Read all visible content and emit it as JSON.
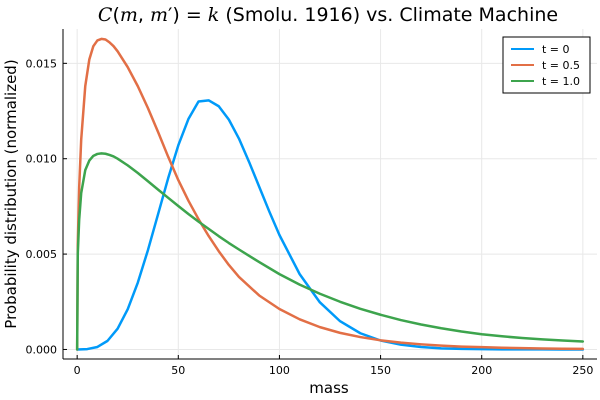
{
  "chart_data": {
    "type": "line",
    "title": {
      "formula_func": "C",
      "formula_args_a": "(",
      "formula_m1": "m",
      "formula_comma": ", ",
      "formula_m2": "m",
      "formula_prime": "′",
      "formula_close": ")",
      "formula_eq": " = ",
      "formula_k": "k",
      "rest": " (Smolu. 1916) vs. Climate Machine"
    },
    "xlabel": "mass",
    "ylabel": "Probability distribution (normalized)",
    "xlim": [
      -7,
      257
    ],
    "ylim": [
      -0.0005,
      0.0168
    ],
    "x_ticks": [
      {
        "value": 0,
        "label": "0"
      },
      {
        "value": 50,
        "label": "50"
      },
      {
        "value": 100,
        "label": "100"
      },
      {
        "value": 150,
        "label": "150"
      },
      {
        "value": 200,
        "label": "200"
      },
      {
        "value": 250,
        "label": "250"
      }
    ],
    "y_ticks": [
      {
        "value": 0.0,
        "label": "0.000"
      },
      {
        "value": 0.005,
        "label": "0.005"
      },
      {
        "value": 0.01,
        "label": "0.010"
      },
      {
        "value": 0.015,
        "label": "0.015"
      }
    ],
    "grid": true,
    "legend_position": "top-right",
    "series": [
      {
        "name": "t = 0",
        "color": "#009af9",
        "x": [
          0,
          5,
          10,
          15,
          20,
          25,
          30,
          35,
          40,
          45,
          50,
          55,
          60,
          65,
          70,
          75,
          80,
          85,
          90,
          95,
          100,
          110,
          120,
          130,
          140,
          150,
          160,
          170,
          180,
          190,
          200,
          210,
          220,
          230,
          240,
          250
        ],
        "y": [
          0.0,
          2e-05,
          0.00013,
          0.00045,
          0.00109,
          0.00211,
          0.00351,
          0.00521,
          0.00709,
          0.00898,
          0.0107,
          0.01208,
          0.013,
          0.01306,
          0.01275,
          0.01205,
          0.01105,
          0.00983,
          0.00853,
          0.00723,
          0.006,
          0.00395,
          0.00247,
          0.00148,
          0.00085,
          0.00047,
          0.00025,
          0.00013,
          6e-05,
          3e-05,
          1.5e-05,
          7e-06,
          3e-06,
          1.5e-06,
          7e-07,
          3e-07
        ]
      },
      {
        "name": "t = 0.5",
        "color": "#e26f46",
        "x": [
          0,
          0.3,
          1,
          2,
          4,
          6,
          8,
          10,
          12,
          14,
          16,
          18,
          20,
          25,
          30,
          35,
          40,
          45,
          50,
          55,
          60,
          65,
          70,
          75,
          80,
          90,
          100,
          110,
          120,
          130,
          140,
          150,
          160,
          170,
          180,
          190,
          200,
          210,
          220,
          230,
          240,
          250
        ],
        "y": [
          0.0,
          0.0055,
          0.0085,
          0.011,
          0.0138,
          0.0152,
          0.0159,
          0.0162,
          0.01628,
          0.01625,
          0.0161,
          0.0159,
          0.01563,
          0.0148,
          0.0138,
          0.01265,
          0.0114,
          0.0101,
          0.00888,
          0.0078,
          0.00683,
          0.00595,
          0.00515,
          0.00443,
          0.0038,
          0.00283,
          0.00212,
          0.00158,
          0.00117,
          0.00087,
          0.00065,
          0.00048,
          0.00036,
          0.00027,
          0.0002,
          0.00015,
          0.00012,
          9e-05,
          7e-05,
          5e-05,
          4e-05,
          3e-05
        ]
      },
      {
        "name": "t = 1.0",
        "color": "#3da44d",
        "x": [
          0,
          0.3,
          1,
          2,
          4,
          6,
          8,
          10,
          12,
          14,
          16,
          18,
          20,
          25,
          30,
          35,
          40,
          45,
          50,
          55,
          60,
          65,
          70,
          75,
          80,
          90,
          100,
          110,
          120,
          130,
          140,
          150,
          160,
          170,
          180,
          190,
          200,
          210,
          220,
          230,
          240,
          250
        ],
        "y": [
          0.0,
          0.005,
          0.0068,
          0.0082,
          0.0094,
          0.0099,
          0.01015,
          0.01025,
          0.01028,
          0.01026,
          0.0102,
          0.01012,
          0.01,
          0.00965,
          0.00925,
          0.00882,
          0.00838,
          0.00795,
          0.00752,
          0.0071,
          0.0067,
          0.00632,
          0.00594,
          0.00558,
          0.00524,
          0.00458,
          0.00395,
          0.0034,
          0.00292,
          0.0025,
          0.00213,
          0.00182,
          0.00154,
          0.00131,
          0.00111,
          0.00094,
          0.0008,
          0.00069,
          0.0006,
          0.00053,
          0.00047,
          0.00042
        ]
      }
    ]
  }
}
